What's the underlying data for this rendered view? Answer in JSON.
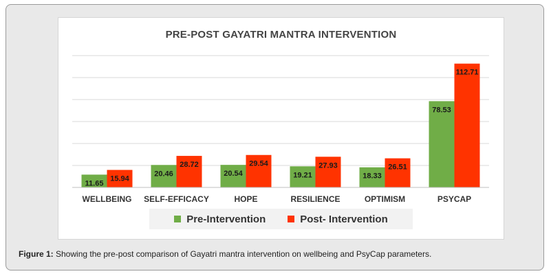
{
  "figure": {
    "caption_label": "Figure 1:",
    "caption_text": " Showing the pre-post comparison of Gayatri mantra intervention on wellbeing and PsyCap parameters."
  },
  "chart_data": {
    "type": "bar",
    "title": "PRE-POST GAYATRI MANTRA INTERVENTION",
    "xlabel": "",
    "ylabel": "",
    "ylim": [
      0,
      120
    ],
    "grid": true,
    "legend_position": "bottom",
    "categories": [
      "WELLBEING",
      "SELF-EFFICACY",
      "HOPE",
      "RESILIENCE",
      "OPTIMISM",
      "PSYCAP"
    ],
    "series": [
      {
        "name": "Pre-Intervention",
        "color": "#70ad47",
        "values": [
          11.65,
          20.46,
          20.54,
          19.21,
          18.33,
          78.53
        ],
        "labels": [
          "11.65",
          "20.46",
          "20.54",
          "19.21",
          "18.33",
          "78.53"
        ]
      },
      {
        "name": "Post- Intervention",
        "color": "#ff3300",
        "values": [
          15.94,
          28.72,
          29.54,
          27.93,
          26.51,
          112.71
        ],
        "labels": [
          "15.94",
          "28.72",
          "29.54",
          "27.93",
          "26.51",
          "112.71"
        ]
      }
    ]
  }
}
